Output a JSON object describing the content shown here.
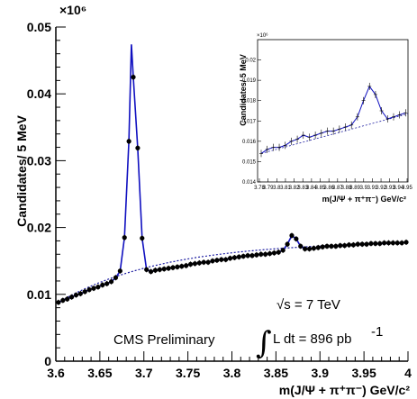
{
  "chart_data": [
    {
      "type": "scatter",
      "xlabel": "m(J/Ψ + π⁺π⁻) GeV/c²",
      "ylabel": "Candidates/ 5  MeV",
      "multiplier": "×10⁶",
      "xlim": [
        3.6,
        4.0
      ],
      "ylim": [
        0,
        0.05
      ],
      "x_ticks": [
        "3.6",
        "3.65",
        "3.7",
        "3.75",
        "3.8",
        "3.85",
        "3.9",
        "3.95",
        "4"
      ],
      "y_ticks": [
        "0",
        "0.01",
        "0.02",
        "0.03",
        "0.04",
        "0.05"
      ],
      "annotations": {
        "energy": "√s = 7 TeV",
        "integral_sign": "∫",
        "lumi": "L dt = 896 pb",
        "lumi_exp": "-1",
        "experiment": "CMS Preliminary"
      },
      "series": [
        {
          "points": [
            [
              3.603,
              0.0088
            ],
            [
              3.608,
              0.0091
            ],
            [
              3.613,
              0.0093
            ],
            [
              3.618,
              0.0096
            ],
            [
              3.623,
              0.0099
            ],
            [
              3.628,
              0.0101
            ],
            [
              3.633,
              0.0104
            ],
            [
              3.638,
              0.0107
            ],
            [
              3.643,
              0.0109
            ],
            [
              3.648,
              0.0111
            ],
            [
              3.653,
              0.0114
            ],
            [
              3.658,
              0.0116
            ],
            [
              3.663,
              0.0119
            ],
            [
              3.668,
              0.0125
            ],
            [
              3.673,
              0.0135
            ],
            [
              3.678,
              0.0185
            ],
            [
              3.683,
              0.0329
            ],
            [
              3.688,
              0.0425
            ],
            [
              3.693,
              0.0319
            ],
            [
              3.698,
              0.0184
            ],
            [
              3.703,
              0.0137
            ],
            [
              3.708,
              0.0134
            ],
            [
              3.713,
              0.0136
            ],
            [
              3.718,
              0.0137
            ],
            [
              3.723,
              0.0138
            ],
            [
              3.728,
              0.0139
            ],
            [
              3.733,
              0.014
            ],
            [
              3.738,
              0.0141
            ],
            [
              3.743,
              0.0142
            ],
            [
              3.748,
              0.0143
            ],
            [
              3.753,
              0.0145
            ],
            [
              3.758,
              0.0146
            ],
            [
              3.763,
              0.0147
            ],
            [
              3.768,
              0.0148
            ],
            [
              3.773,
              0.0148
            ],
            [
              3.778,
              0.015
            ],
            [
              3.783,
              0.0151
            ],
            [
              3.788,
              0.0152
            ],
            [
              3.793,
              0.0152
            ],
            [
              3.798,
              0.0154
            ],
            [
              3.803,
              0.0155
            ],
            [
              3.808,
              0.0156
            ],
            [
              3.813,
              0.0157
            ],
            [
              3.818,
              0.0158
            ],
            [
              3.823,
              0.0158
            ],
            [
              3.828,
              0.0159
            ],
            [
              3.833,
              0.016
            ],
            [
              3.838,
              0.016
            ],
            [
              3.843,
              0.0161
            ],
            [
              3.848,
              0.0162
            ],
            [
              3.853,
              0.0163
            ],
            [
              3.858,
              0.0166
            ],
            [
              3.863,
              0.0175
            ],
            [
              3.868,
              0.0188
            ],
            [
              3.873,
              0.0183
            ],
            [
              3.878,
              0.0172
            ],
            [
              3.883,
              0.0168
            ],
            [
              3.888,
              0.0168
            ],
            [
              3.893,
              0.0169
            ],
            [
              3.898,
              0.017
            ],
            [
              3.903,
              0.0171
            ],
            [
              3.908,
              0.0172
            ],
            [
              3.913,
              0.0172
            ],
            [
              3.918,
              0.0172
            ],
            [
              3.923,
              0.0173
            ],
            [
              3.928,
              0.0173
            ],
            [
              3.933,
              0.0174
            ],
            [
              3.938,
              0.0174
            ],
            [
              3.943,
              0.0175
            ],
            [
              3.948,
              0.0175
            ],
            [
              3.953,
              0.0175
            ],
            [
              3.958,
              0.0176
            ],
            [
              3.963,
              0.0176
            ],
            [
              3.968,
              0.0176
            ],
            [
              3.973,
              0.0177
            ],
            [
              3.978,
              0.0177
            ],
            [
              3.983,
              0.0177
            ],
            [
              3.988,
              0.0177
            ],
            [
              3.993,
              0.0177
            ],
            [
              3.998,
              0.0178
            ]
          ]
        }
      ]
    },
    {
      "type": "scatter",
      "xlabel": "m(J/Ψ + π⁺π⁻) GeV/c²",
      "ylabel": "Candidates/ 5  MeV",
      "multiplier": "×10⁶",
      "xlim": [
        3.775,
        3.9
      ],
      "ylim": [
        0.014,
        0.021
      ],
      "x_ticks": [
        "3.78",
        "3.79",
        "3.8",
        "3.81",
        "3.82",
        "3.83",
        "3.84",
        "3.85",
        "3.86",
        "3.87",
        "3.88",
        "3.89",
        "3.9",
        "3.91",
        "3.92",
        "3.93",
        "3.94",
        "3.95"
      ],
      "y_ticks": [
        "0.014",
        "0.015",
        "0.016",
        "0.017",
        "0.018",
        "0.019",
        "0.02"
      ],
      "series": [
        {
          "points": [
            [
              3.778,
              0.0154
            ],
            [
              3.783,
              0.0156
            ],
            [
              3.788,
              0.0157
            ],
            [
              3.793,
              0.0157
            ],
            [
              3.798,
              0.0158
            ],
            [
              3.803,
              0.016
            ],
            [
              3.808,
              0.0161
            ],
            [
              3.813,
              0.0163
            ],
            [
              3.818,
              0.0162
            ],
            [
              3.823,
              0.0163
            ],
            [
              3.828,
              0.0164
            ],
            [
              3.833,
              0.0165
            ],
            [
              3.838,
              0.0165
            ],
            [
              3.843,
              0.0166
            ],
            [
              3.848,
              0.0167
            ],
            [
              3.853,
              0.0168
            ],
            [
              3.858,
              0.0172
            ],
            [
              3.863,
              0.018
            ],
            [
              3.868,
              0.0187
            ],
            [
              3.873,
              0.0183
            ],
            [
              3.878,
              0.0175
            ],
            [
              3.883,
              0.0171
            ],
            [
              3.888,
              0.0172
            ],
            [
              3.893,
              0.0173
            ],
            [
              3.898,
              0.0174
            ]
          ]
        }
      ]
    }
  ]
}
